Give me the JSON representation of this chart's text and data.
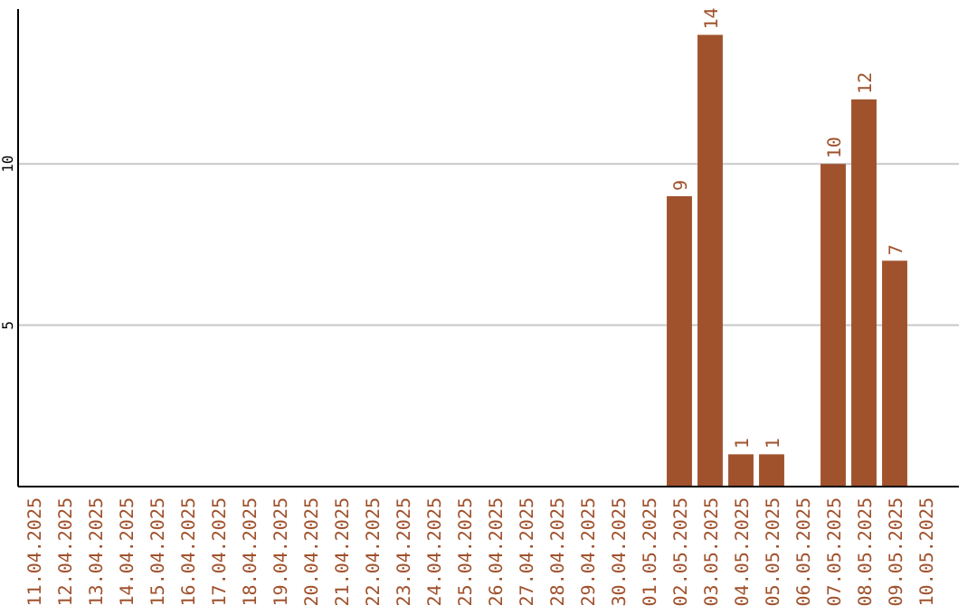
{
  "chart_data": {
    "type": "bar",
    "categories": [
      "11.04.2025",
      "12.04.2025",
      "13.04.2025",
      "14.04.2025",
      "15.04.2025",
      "16.04.2025",
      "17.04.2025",
      "18.04.2025",
      "19.04.2025",
      "20.04.2025",
      "21.04.2025",
      "22.04.2025",
      "23.04.2025",
      "24.04.2025",
      "25.04.2025",
      "26.04.2025",
      "27.04.2025",
      "28.04.2025",
      "29.04.2025",
      "30.04.2025",
      "01.05.2025",
      "02.05.2025",
      "03.05.2025",
      "04.05.2025",
      "05.05.2025",
      "06.05.2025",
      "07.05.2025",
      "08.05.2025",
      "09.05.2025",
      "10.05.2025"
    ],
    "values": [
      null,
      null,
      null,
      null,
      null,
      null,
      null,
      null,
      null,
      null,
      null,
      null,
      null,
      null,
      null,
      null,
      null,
      null,
      null,
      null,
      null,
      9,
      14,
      1,
      1,
      null,
      10,
      12,
      7,
      null
    ],
    "color": "#a0522d",
    "ylim": [
      0,
      14.8
    ],
    "yticks": [
      5,
      10
    ],
    "grid": "y",
    "data_labels": true
  }
}
